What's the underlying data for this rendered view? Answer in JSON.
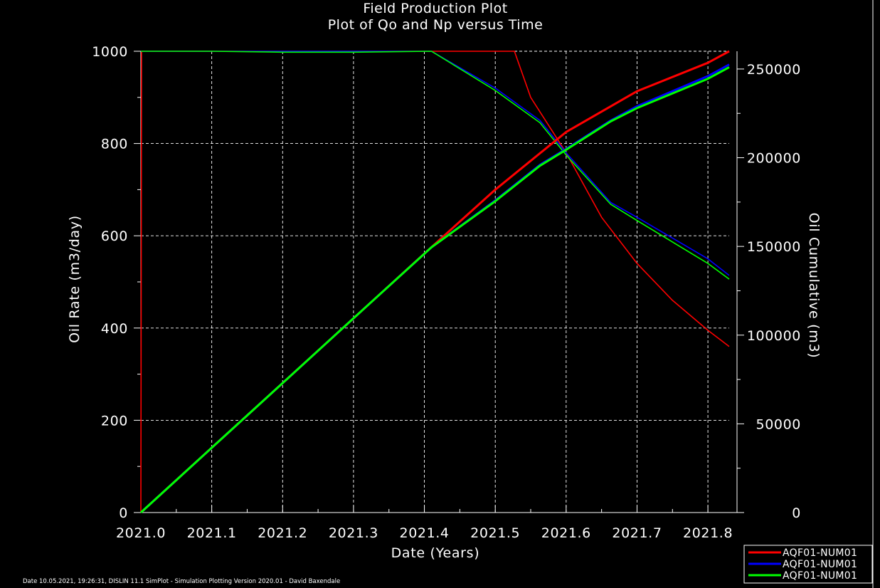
{
  "chart_data": {
    "type": "line",
    "title": "Field Production Plot",
    "subtitle": "Plot of Qo and Np versus Time",
    "xlabel": "Date (Years)",
    "ylabel": "Oil Rate (m3/day)",
    "y2label": "Oil Cumulative (m3)",
    "xlim": [
      2021.0,
      2021.83
    ],
    "ylim": [
      0,
      1000
    ],
    "y2lim": [
      0,
      260000
    ],
    "x_ticks": [
      "2021.0",
      "2021.1",
      "2021.2",
      "2021.3",
      "2021.4",
      "2021.5",
      "2021.6",
      "2021.7",
      "2021.8"
    ],
    "y_ticks": [
      "0",
      "200",
      "400",
      "600",
      "800",
      "1000"
    ],
    "y2_ticks": [
      "0",
      "50000",
      "100000",
      "150000",
      "200000",
      "250000"
    ],
    "grid": true,
    "legend_position": "bottom-right",
    "legend": [
      "AQF01-NUM01",
      "AQF01-NUM01",
      "AQF01-NUM01"
    ],
    "series": [
      {
        "name": "AQF01-NUM01",
        "color": "#ff0000",
        "axis": "left",
        "kind": "rate",
        "x": [
          2021.0,
          2021.001,
          2021.003,
          2021.1,
          2021.2,
          2021.3,
          2021.4,
          2021.5,
          2021.527,
          2021.55,
          2021.6,
          2021.65,
          2021.7,
          2021.75,
          2021.8,
          2021.83
        ],
        "y": [
          0,
          1000,
          1000,
          1000,
          1000,
          1000,
          1000,
          1000,
          1000,
          900,
          780,
          640,
          540,
          460,
          395,
          360
        ]
      },
      {
        "name": "AQF01-NUM01",
        "color": "#0000ff",
        "axis": "left",
        "kind": "rate",
        "x": [
          2021.0,
          2021.1,
          2021.2,
          2021.3,
          2021.41,
          2021.5,
          2021.563,
          2021.6,
          2021.663,
          2021.7,
          2021.8,
          2021.83
        ],
        "y": [
          1000,
          1000,
          1000,
          1000,
          1000,
          920,
          850,
          780,
          672,
          640,
          550,
          514
        ]
      },
      {
        "name": "AQF01-NUM01",
        "color": "#00ff00",
        "axis": "left",
        "kind": "rate",
        "x": [
          2021.0,
          2021.1,
          2021.2,
          2021.3,
          2021.41,
          2021.5,
          2021.563,
          2021.6,
          2021.663,
          2021.7,
          2021.8,
          2021.83
        ],
        "y": [
          1000,
          1000,
          998,
          998,
          1000,
          915,
          845,
          775,
          668,
          633,
          540,
          506
        ]
      },
      {
        "name": "AQF01-NUM01",
        "color": "#ff0000",
        "axis": "right",
        "kind": "cumulative",
        "x": [
          2021.0,
          2021.1,
          2021.2,
          2021.3,
          2021.4,
          2021.5,
          2021.6,
          2021.7,
          2021.8,
          2021.83
        ],
        "y": [
          0,
          36500,
          73000,
          109500,
          146000,
          182000,
          214500,
          237500,
          253500,
          260000
        ]
      },
      {
        "name": "AQF01-NUM01",
        "color": "#0000ff",
        "axis": "right",
        "kind": "cumulative",
        "x": [
          2021.0,
          2021.1,
          2021.2,
          2021.3,
          2021.41,
          2021.5,
          2021.563,
          2021.6,
          2021.663,
          2021.7,
          2021.8,
          2021.83
        ],
        "y": [
          0,
          36500,
          73000,
          109500,
          149500,
          176000,
          196000,
          205000,
          221000,
          229000,
          246000,
          252500
        ]
      },
      {
        "name": "AQF01-NUM01",
        "color": "#00ff00",
        "axis": "right",
        "kind": "cumulative",
        "x": [
          2021.0,
          2021.1,
          2021.2,
          2021.3,
          2021.41,
          2021.5,
          2021.563,
          2021.6,
          2021.663,
          2021.7,
          2021.8,
          2021.83
        ],
        "y": [
          0,
          36500,
          73000,
          109500,
          149500,
          175500,
          195500,
          204500,
          220500,
          228000,
          244500,
          251000
        ]
      }
    ]
  },
  "footer": "Date 10.05.2021, 19:26:31, DISLIN 11.1 SimPlot - Simulation Plotting Version 2020.01 - David Baxendale"
}
